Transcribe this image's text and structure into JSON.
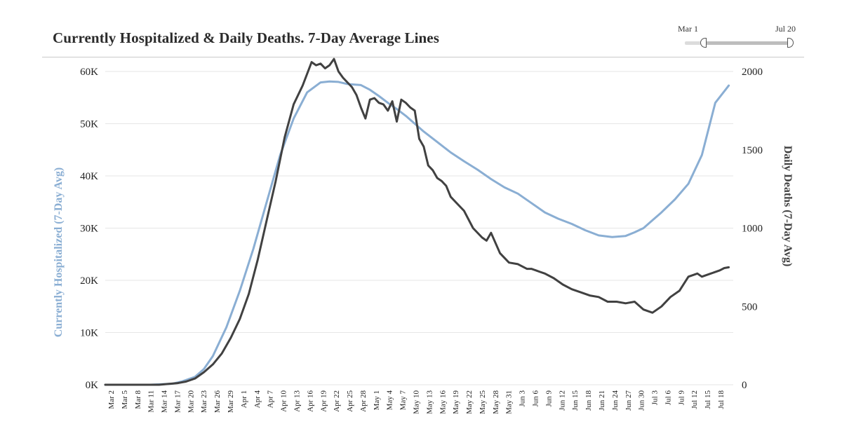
{
  "title": "Currently Hospitalized & Daily Deaths. 7-Day Average Lines",
  "range_slider": {
    "start_label": "Mar 1",
    "end_label": "Jul 20"
  },
  "colors": {
    "hospitalized": "#8aaed3",
    "deaths": "#414141",
    "grid": "#e6e6e6",
    "text": "#222222"
  },
  "chart_data": {
    "type": "line",
    "title": "Currently Hospitalized & Daily Deaths. 7-Day Average Lines",
    "xlabel": "",
    "ylabel": "Currently Hospitalized (7-Day Avg)",
    "y2label": "Daily Deaths (7-Day Avg)",
    "xrange": [
      0,
      140
    ],
    "ylim": [
      0,
      60000
    ],
    "y2lim": [
      0,
      2000
    ],
    "y_ticks": [
      0,
      10000,
      20000,
      30000,
      40000,
      50000,
      60000
    ],
    "y_tick_labels": [
      "0K",
      "10K",
      "20K",
      "30K",
      "40K",
      "50K",
      "60K"
    ],
    "y2_ticks": [
      0,
      500,
      1000,
      1500,
      2000
    ],
    "y2_tick_labels": [
      "0",
      "500",
      "1000",
      "1500",
      "2000"
    ],
    "x_tick_labels": [
      "Mar 2",
      "Mar 5",
      "Mar 8",
      "Mar 11",
      "Mar 14",
      "Mar 17",
      "Mar 20",
      "Mar 23",
      "Mar 26",
      "Mar 29",
      "Apr 1",
      "Apr 4",
      "Apr 7",
      "Apr 10",
      "Apr 13",
      "Apr 16",
      "Apr 19",
      "Apr 22",
      "Apr 25",
      "Apr 28",
      "May 1",
      "May 4",
      "May 7",
      "May 10",
      "May 13",
      "May 16",
      "May 19",
      "May 22",
      "May 25",
      "May 28",
      "May 31",
      "Jun 3",
      "Jun 6",
      "Jun 9",
      "Jun 12",
      "Jun 15",
      "Jun 18",
      "Jun 21",
      "Jun 24",
      "Jun 27",
      "Jun 30",
      "Jul 3",
      "Jul 6",
      "Jul 9",
      "Jul 12",
      "Jul 15",
      "Jul 18"
    ],
    "series": [
      {
        "name": "Currently Hospitalized (7-Day Avg)",
        "axis": "left",
        "color": "#8aaed3",
        "x": [
          0,
          10,
          15,
          17,
          20,
          22,
          24,
          27,
          30,
          33,
          36,
          39,
          42,
          45,
          48,
          50,
          52,
          54,
          57,
          59,
          61,
          63,
          65,
          67,
          69,
          71,
          74,
          77,
          80,
          83,
          86,
          89,
          92,
          95,
          98,
          101,
          104,
          107,
          110,
          113,
          116,
          118,
          120,
          122,
          124,
          127,
          130,
          133,
          136,
          139
        ],
        "values": [
          0,
          0,
          200,
          600,
          1500,
          3000,
          5500,
          11000,
          18000,
          26000,
          35000,
          44000,
          51000,
          56000,
          57900,
          58100,
          58000,
          57600,
          57400,
          56500,
          55300,
          54000,
          52800,
          51500,
          50000,
          48500,
          46500,
          44500,
          42800,
          41200,
          39400,
          37800,
          36600,
          34800,
          33000,
          31800,
          30800,
          29600,
          28600,
          28300,
          28500,
          29200,
          30000,
          31500,
          33000,
          35500,
          38500,
          44000,
          54000,
          57300
        ]
      },
      {
        "name": "Daily Deaths (7-Day Avg)",
        "axis": "right",
        "color": "#414141",
        "x": [
          0,
          12,
          16,
          18,
          20,
          22,
          24,
          26,
          28,
          30,
          32,
          34,
          36,
          38,
          40,
          42,
          44,
          46,
          47,
          48,
          49,
          50,
          51,
          52,
          53,
          54,
          55,
          56,
          57,
          58,
          59,
          60,
          61,
          62,
          63,
          64,
          65,
          66,
          67,
          68,
          69,
          70,
          71,
          72,
          73,
          74,
          75,
          76,
          77,
          78,
          80,
          82,
          84,
          85,
          86,
          88,
          90,
          92,
          94,
          95,
          96,
          97,
          98,
          100,
          102,
          104,
          106,
          108,
          110,
          112,
          114,
          116,
          118,
          120,
          122,
          124,
          126,
          128,
          130,
          132,
          133,
          134,
          135,
          136,
          137,
          138,
          139
        ],
        "values": [
          0,
          0,
          10,
          20,
          40,
          80,
          130,
          200,
          300,
          420,
          580,
          800,
          1050,
          1300,
          1580,
          1790,
          1910,
          2060,
          2040,
          2050,
          2020,
          2040,
          2080,
          2000,
          1960,
          1930,
          1900,
          1850,
          1770,
          1700,
          1820,
          1830,
          1800,
          1790,
          1750,
          1810,
          1680,
          1820,
          1800,
          1770,
          1750,
          1570,
          1520,
          1400,
          1370,
          1320,
          1300,
          1270,
          1200,
          1170,
          1110,
          1000,
          940,
          920,
          970,
          840,
          780,
          770,
          740,
          740,
          730,
          720,
          710,
          680,
          640,
          610,
          590,
          570,
          560,
          530,
          530,
          520,
          530,
          480,
          460,
          500,
          560,
          600,
          690,
          710,
          690,
          700,
          710,
          720,
          730,
          745,
          750
        ]
      }
    ]
  }
}
